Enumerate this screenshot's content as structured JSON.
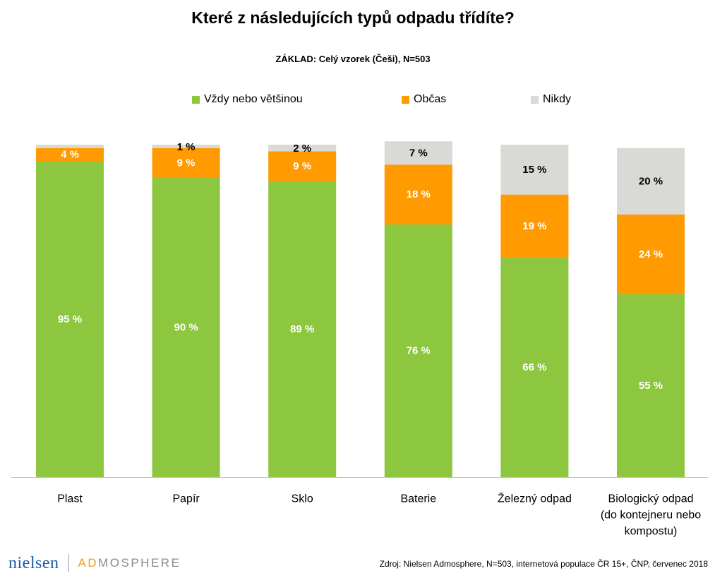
{
  "title": "Které z následujících typů odpadu třídíte?",
  "subtitle": "ZÁKLAD: Celý vzorek (Češi), N=503",
  "source": "Zdroj: Nielsen Admosphere, N=503, internetová populace ČR 15+, ČNP, červenec 2018",
  "logo": {
    "nielsen": "nielsen",
    "admosphere_ad": "AD",
    "admosphere_rest": "MOSPHERE"
  },
  "chart_data": {
    "type": "bar",
    "stacked": true,
    "title": "Které z následujících typů odpadu třídíte?",
    "subtitle": "ZÁKLAD: Celý vzorek (Češi), N=503",
    "categories": [
      [
        "Plast"
      ],
      [
        "Papír"
      ],
      [
        "Sklo"
      ],
      [
        "Baterie"
      ],
      [
        "Železný odpad"
      ],
      [
        "Biologický odpad",
        "(do kontejneru nebo",
        "kompostu)"
      ]
    ],
    "series": [
      {
        "name": "Vždy nebo většinou",
        "color": "#8dc63f",
        "label_color": "#ffffff",
        "values": [
          95,
          90,
          89,
          76,
          66,
          55
        ]
      },
      {
        "name": "Občas",
        "color": "#ff9a00",
        "label_color": "#ffffff",
        "values": [
          4,
          9,
          9,
          18,
          19,
          24
        ]
      },
      {
        "name": "Nikdy",
        "color": "#d9d9d6",
        "label_color": "#000000",
        "values": [
          null,
          1,
          2,
          7,
          15,
          20
        ]
      }
    ],
    "ylim": [
      0,
      100
    ],
    "unit": " %",
    "legend": "top",
    "grid": false
  }
}
